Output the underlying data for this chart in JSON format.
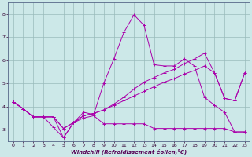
{
  "xlabel": "Windchill (Refroidissement éolien,°C)",
  "bg_color": "#cce8e8",
  "line_color": "#aa00aa",
  "grid_color": "#99bbbb",
  "xlim": [
    -0.5,
    23.5
  ],
  "ylim": [
    2.5,
    8.5
  ],
  "yticks": [
    3,
    4,
    5,
    6,
    7,
    8
  ],
  "xticks": [
    0,
    1,
    2,
    3,
    4,
    5,
    6,
    7,
    8,
    9,
    10,
    11,
    12,
    13,
    14,
    15,
    16,
    17,
    18,
    19,
    20,
    21,
    22,
    23
  ],
  "lines": [
    [
      4.2,
      3.9,
      3.55,
      3.55,
      3.55,
      2.65,
      3.3,
      3.75,
      3.65,
      5.0,
      6.05,
      7.2,
      7.95,
      7.5,
      5.8,
      5.75,
      5.75,
      6.05,
      5.75,
      4.4,
      4.05,
      3.75,
      2.9,
      2.9
    ],
    [
      4.2,
      3.9,
      3.55,
      3.55,
      3.1,
      2.65,
      3.3,
      3.5,
      3.6,
      3.25,
      3.25,
      3.25,
      3.25,
      3.25,
      3.05,
      3.05,
      3.05,
      3.05,
      3.05,
      3.05,
      3.05,
      3.05,
      2.9,
      2.9
    ],
    [
      4.2,
      3.9,
      3.55,
      3.55,
      3.55,
      3.05,
      3.3,
      3.6,
      3.7,
      3.85,
      4.05,
      4.25,
      4.45,
      4.65,
      4.85,
      5.05,
      5.2,
      5.4,
      5.55,
      5.75,
      5.45,
      4.35,
      4.25,
      5.45
    ],
    [
      4.2,
      3.9,
      3.55,
      3.55,
      3.55,
      3.05,
      3.3,
      3.6,
      3.7,
      3.85,
      4.1,
      4.4,
      4.75,
      5.05,
      5.25,
      5.45,
      5.6,
      5.85,
      6.05,
      6.3,
      5.45,
      4.35,
      4.25,
      5.45
    ]
  ],
  "figsize": [
    3.2,
    2.0
  ],
  "dpi": 100
}
